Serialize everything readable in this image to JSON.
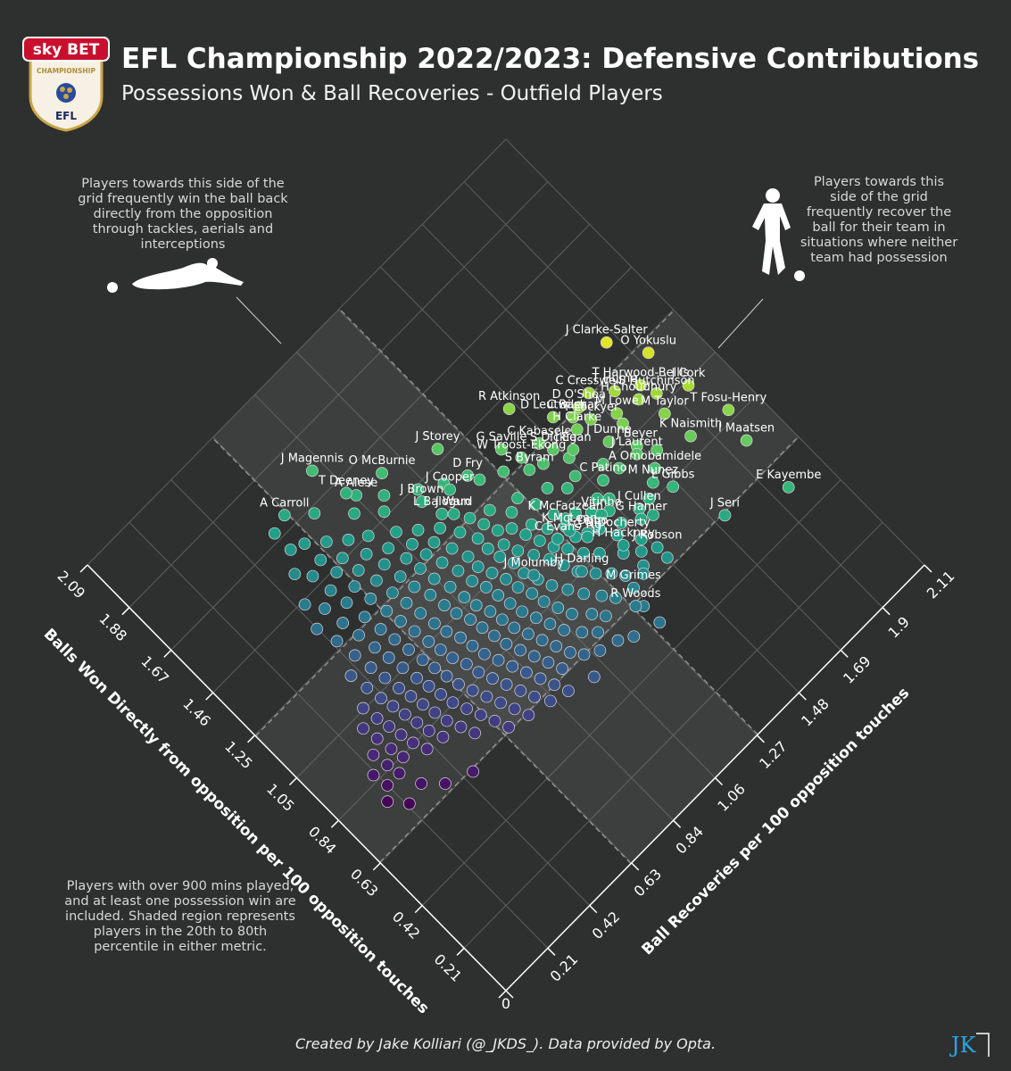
{
  "header": {
    "title": "EFL Championship 2022/2023: Defensive Contributions",
    "subtitle": "Possessions Won & Ball Recoveries - Outfield Players"
  },
  "logo": {
    "brand": "sky BET",
    "league": "CHAMPIONSHIP",
    "short": "EFL"
  },
  "notes": {
    "left": "Players towards this side of the grid frequently win the ball back directly from the opposition through tackles, aerials and interceptions",
    "right": "Players towards this side of the grid frequently recover the ball for their team in situations where neither team had possession",
    "bottom": "Players with over 900 mins played, and at least one possession win are included. Shaded region represents players in the 20th to 80th percentile in either metric."
  },
  "credit": "Created by Jake Kolliari (@_JKDS_). Data provided by Opta.",
  "watermark": "JK",
  "colors": {
    "background": "#2e2f2f",
    "grid": "#6b6b6b",
    "shade": "#3d3d3d"
  },
  "chart_data": {
    "type": "scatter",
    "xlabel": "Balls Won Directly from opposition per 100 opposition touches",
    "ylabel": "Ball Recoveries per 100 opposition touches",
    "x_ticks": [
      "0",
      "0.21",
      "0.42",
      "0.63",
      "0.84",
      "1.05",
      "1.25",
      "1.46",
      "1.67",
      "1.88",
      "2.09"
    ],
    "y_ticks": [
      "0",
      "0.21",
      "0.42",
      "0.63",
      "0.84",
      "1.06",
      "1.27",
      "1.48",
      "1.69",
      "1.9",
      "2.11"
    ],
    "xlim": [
      0,
      2.09
    ],
    "ylim": [
      0,
      2.11
    ],
    "shaded_x": [
      0.63,
      1.25
    ],
    "shaded_y": [
      0.63,
      1.27
    ],
    "labeled_points": [
      {
        "name": "J Clarke-Salter",
        "x": 1.34,
        "y": 1.86
      },
      {
        "name": "O Yokuslu",
        "x": 1.21,
        "y": 1.94
      },
      {
        "name": "J Cork",
        "x": 1.03,
        "y": 1.96
      },
      {
        "name": "T Fosu-Henry",
        "x": 0.87,
        "y": 2.0
      },
      {
        "name": "T Harwood-Bellis",
        "x": 1.15,
        "y": 1.84
      },
      {
        "name": "S Hutchinson",
        "x": 1.09,
        "y": 1.86
      },
      {
        "name": "M Taylor",
        "x": 1.02,
        "y": 1.83
      },
      {
        "name": "T Hume",
        "x": 1.2,
        "y": 1.76
      },
      {
        "name": "H Choudhury",
        "x": 1.12,
        "y": 1.8
      },
      {
        "name": "C Cresswell",
        "x": 1.26,
        "y": 1.69
      },
      {
        "name": "M Lowe",
        "x": 1.14,
        "y": 1.71
      },
      {
        "name": "K Naismith",
        "x": 0.9,
        "y": 1.84
      },
      {
        "name": "I Maatsen",
        "x": 0.75,
        "y": 1.97
      },
      {
        "name": "D O'Shea",
        "x": 1.25,
        "y": 1.63
      },
      {
        "name": "T Lockyer",
        "x": 1.19,
        "y": 1.63
      },
      {
        "name": "J Beyer",
        "x": 1.01,
        "y": 1.68
      },
      {
        "name": "J Laurent",
        "x": 0.99,
        "y": 1.66
      },
      {
        "name": "C Bashar",
        "x": 1.24,
        "y": 1.59
      },
      {
        "name": "J Dunne",
        "x": 1.09,
        "y": 1.62
      },
      {
        "name": "A Omobamidele",
        "x": 0.91,
        "y": 1.67
      },
      {
        "name": "R Atkinson",
        "x": 1.42,
        "y": 1.45
      },
      {
        "name": "D Leutwiler",
        "x": 1.29,
        "y": 1.54
      },
      {
        "name": "H Clarke",
        "x": 1.2,
        "y": 1.57
      },
      {
        "name": "J Egan",
        "x": 1.16,
        "y": 1.51
      },
      {
        "name": "M Nunez",
        "x": 0.88,
        "y": 1.63
      },
      {
        "name": "L Gibbs",
        "x": 0.82,
        "y": 1.67
      },
      {
        "name": "E Kayembe",
        "x": 0.53,
        "y": 1.96
      },
      {
        "name": "C Kabasele",
        "x": 1.26,
        "y": 1.44
      },
      {
        "name": "S Dickie",
        "x": 1.21,
        "y": 1.46
      },
      {
        "name": "C Patino",
        "x": 1.01,
        "y": 1.51
      },
      {
        "name": "J Cullen",
        "x": 0.85,
        "y": 1.53
      },
      {
        "name": "G Saville",
        "x": 1.34,
        "y": 1.33
      },
      {
        "name": "W Troost-Ekong",
        "x": 1.27,
        "y": 1.36
      },
      {
        "name": "S Byram",
        "x": 1.22,
        "y": 1.35
      },
      {
        "name": "J Storey",
        "x": 1.5,
        "y": 1.17
      },
      {
        "name": "Vitinho",
        "x": 0.93,
        "y": 1.42
      },
      {
        "name": "G Hamer",
        "x": 0.82,
        "y": 1.51
      },
      {
        "name": "J Seri",
        "x": 0.62,
        "y": 1.73
      },
      {
        "name": "D Fry",
        "x": 1.36,
        "y": 1.18
      },
      {
        "name": "K McFadzean",
        "x": 1.01,
        "y": 1.32
      },
      {
        "name": "F Dabo",
        "x": 0.92,
        "y": 1.34
      },
      {
        "name": "G Docherty",
        "x": 0.84,
        "y": 1.41
      },
      {
        "name": "J Cooper",
        "x": 1.37,
        "y": 1.1
      },
      {
        "name": "K McLean",
        "x": 0.97,
        "y": 1.3
      },
      {
        "name": "G Ng",
        "x": 0.91,
        "y": 1.33
      },
      {
        "name": "H Hackney",
        "x": 0.8,
        "y": 1.4
      },
      {
        "name": "J Robson",
        "x": 0.71,
        "y": 1.48
      },
      {
        "name": "O McBurnie",
        "x": 1.58,
        "y": 0.97
      },
      {
        "name": "J Brown",
        "x": 1.41,
        "y": 1.0
      },
      {
        "name": "L Balogun",
        "x": 1.33,
        "y": 1.02
      },
      {
        "name": "J Ward",
        "x": 1.3,
        "y": 1.05
      },
      {
        "name": "C Evans",
        "x": 0.98,
        "y": 1.25
      },
      {
        "name": "J Magennis",
        "x": 1.76,
        "y": 0.8
      },
      {
        "name": "A Alese",
        "x": 1.59,
        "y": 0.85
      },
      {
        "name": "T Deeney",
        "x": 1.62,
        "y": 0.83
      },
      {
        "name": "J Molumby",
        "x": 0.95,
        "y": 1.1
      },
      {
        "name": "H Darling",
        "x": 0.84,
        "y": 1.23
      },
      {
        "name": "M Grimes",
        "x": 0.67,
        "y": 1.32
      },
      {
        "name": "R Woods",
        "x": 0.62,
        "y": 1.28
      },
      {
        "name": "A Carroll",
        "x": 1.72,
        "y": 0.62
      }
    ],
    "other_points": [
      [
        1.09,
        1.45
      ],
      [
        1.05,
        1.55
      ],
      [
        0.98,
        1.45
      ],
      [
        0.95,
        1.48
      ],
      [
        1.13,
        1.35
      ],
      [
        1.08,
        1.4
      ],
      [
        1.05,
        1.3
      ],
      [
        1.0,
        1.36
      ],
      [
        0.96,
        1.4
      ],
      [
        0.92,
        1.45
      ],
      [
        1.18,
        1.25
      ],
      [
        1.12,
        1.28
      ],
      [
        1.08,
        1.22
      ],
      [
        1.03,
        1.25
      ],
      [
        0.99,
        1.3
      ],
      [
        0.94,
        1.3
      ],
      [
        0.9,
        1.38
      ],
      [
        0.86,
        1.45
      ],
      [
        0.8,
        1.55
      ],
      [
        1.22,
        1.15
      ],
      [
        1.16,
        1.2
      ],
      [
        1.12,
        1.16
      ],
      [
        1.07,
        1.18
      ],
      [
        1.02,
        1.2
      ],
      [
        0.97,
        1.22
      ],
      [
        0.93,
        1.25
      ],
      [
        0.88,
        1.28
      ],
      [
        0.84,
        1.32
      ],
      [
        0.78,
        1.38
      ],
      [
        0.74,
        1.43
      ],
      [
        1.25,
        1.08
      ],
      [
        1.2,
        1.1
      ],
      [
        1.15,
        1.12
      ],
      [
        1.1,
        1.1
      ],
      [
        1.05,
        1.12
      ],
      [
        1.0,
        1.15
      ],
      [
        0.95,
        1.18
      ],
      [
        0.9,
        1.2
      ],
      [
        0.85,
        1.22
      ],
      [
        0.8,
        1.26
      ],
      [
        0.76,
        1.3
      ],
      [
        0.72,
        1.33
      ],
      [
        1.3,
        0.98
      ],
      [
        1.24,
        1.02
      ],
      [
        1.18,
        1.05
      ],
      [
        1.13,
        1.05
      ],
      [
        1.08,
        1.06
      ],
      [
        1.03,
        1.08
      ],
      [
        0.98,
        1.08
      ],
      [
        0.93,
        1.1
      ],
      [
        0.88,
        1.12
      ],
      [
        0.83,
        1.15
      ],
      [
        0.78,
        1.18
      ],
      [
        0.73,
        1.22
      ],
      [
        0.69,
        1.25
      ],
      [
        1.35,
        0.92
      ],
      [
        1.28,
        0.93
      ],
      [
        1.22,
        0.96
      ],
      [
        1.16,
        0.98
      ],
      [
        1.11,
        0.98
      ],
      [
        1.06,
        1.0
      ],
      [
        1.01,
        1.02
      ],
      [
        0.96,
        1.03
      ],
      [
        0.91,
        1.05
      ],
      [
        0.86,
        1.06
      ],
      [
        0.81,
        1.08
      ],
      [
        0.76,
        1.1
      ],
      [
        0.71,
        1.15
      ],
      [
        0.67,
        1.18
      ],
      [
        1.4,
        0.86
      ],
      [
        1.33,
        0.87
      ],
      [
        1.27,
        0.88
      ],
      [
        1.21,
        0.9
      ],
      [
        1.15,
        0.92
      ],
      [
        1.09,
        0.93
      ],
      [
        1.04,
        0.95
      ],
      [
        0.99,
        0.96
      ],
      [
        0.94,
        0.97
      ],
      [
        0.89,
        0.98
      ],
      [
        0.84,
        1.0
      ],
      [
        0.79,
        1.02
      ],
      [
        0.74,
        1.04
      ],
      [
        0.69,
        1.08
      ],
      [
        0.65,
        1.12
      ],
      [
        1.46,
        0.78
      ],
      [
        1.38,
        0.8
      ],
      [
        1.31,
        0.82
      ],
      [
        1.25,
        0.83
      ],
      [
        1.19,
        0.84
      ],
      [
        1.13,
        0.86
      ],
      [
        1.07,
        0.87
      ],
      [
        1.02,
        0.88
      ],
      [
        0.97,
        0.9
      ],
      [
        0.92,
        0.91
      ],
      [
        0.87,
        0.92
      ],
      [
        0.82,
        0.94
      ],
      [
        0.77,
        0.96
      ],
      [
        0.72,
        0.98
      ],
      [
        0.67,
        1.0
      ],
      [
        0.63,
        1.03
      ],
      [
        1.5,
        0.72
      ],
      [
        1.42,
        0.73
      ],
      [
        1.35,
        0.75
      ],
      [
        1.28,
        0.76
      ],
      [
        1.22,
        0.77
      ],
      [
        1.16,
        0.79
      ],
      [
        1.1,
        0.8
      ],
      [
        1.05,
        0.81
      ],
      [
        1.0,
        0.83
      ],
      [
        0.95,
        0.84
      ],
      [
        0.9,
        0.85
      ],
      [
        0.85,
        0.86
      ],
      [
        0.8,
        0.88
      ],
      [
        0.75,
        0.9
      ],
      [
        0.7,
        0.92
      ],
      [
        0.65,
        0.94
      ],
      [
        1.55,
        0.66
      ],
      [
        1.47,
        0.66
      ],
      [
        1.4,
        0.67
      ],
      [
        1.33,
        0.69
      ],
      [
        1.26,
        0.7
      ],
      [
        1.2,
        0.71
      ],
      [
        1.14,
        0.72
      ],
      [
        1.08,
        0.73
      ],
      [
        1.03,
        0.74
      ],
      [
        0.98,
        0.76
      ],
      [
        0.93,
        0.77
      ],
      [
        0.88,
        0.78
      ],
      [
        0.83,
        0.8
      ],
      [
        0.78,
        0.82
      ],
      [
        0.73,
        0.84
      ],
      [
        0.68,
        0.86
      ],
      [
        0.63,
        0.88
      ],
      [
        1.6,
        0.6
      ],
      [
        1.52,
        0.6
      ],
      [
        1.45,
        0.61
      ],
      [
        1.37,
        0.62
      ],
      [
        1.3,
        0.63
      ],
      [
        1.23,
        0.64
      ],
      [
        1.17,
        0.65
      ],
      [
        1.11,
        0.66
      ],
      [
        1.05,
        0.67
      ],
      [
        1.0,
        0.68
      ],
      [
        0.95,
        0.69
      ],
      [
        0.9,
        0.71
      ],
      [
        0.85,
        0.72
      ],
      [
        0.8,
        0.74
      ],
      [
        0.75,
        0.76
      ],
      [
        0.7,
        0.78
      ],
      [
        0.65,
        0.8
      ],
      [
        0.6,
        0.83
      ],
      [
        1.5,
        0.54
      ],
      [
        1.42,
        0.55
      ],
      [
        1.35,
        0.56
      ],
      [
        1.27,
        0.57
      ],
      [
        1.2,
        0.58
      ],
      [
        1.14,
        0.59
      ],
      [
        1.08,
        0.6
      ],
      [
        1.02,
        0.61
      ],
      [
        0.97,
        0.62
      ],
      [
        0.92,
        0.63
      ],
      [
        0.87,
        0.64
      ],
      [
        0.82,
        0.66
      ],
      [
        0.77,
        0.68
      ],
      [
        0.72,
        0.7
      ],
      [
        0.67,
        0.72
      ],
      [
        0.62,
        0.74
      ],
      [
        1.39,
        0.49
      ],
      [
        1.31,
        0.5
      ],
      [
        1.24,
        0.51
      ],
      [
        1.17,
        0.52
      ],
      [
        1.11,
        0.53
      ],
      [
        1.05,
        0.54
      ],
      [
        0.99,
        0.55
      ],
      [
        0.94,
        0.56
      ],
      [
        0.89,
        0.57
      ],
      [
        0.84,
        0.58
      ],
      [
        0.79,
        0.6
      ],
      [
        0.74,
        0.62
      ],
      [
        0.69,
        0.64
      ],
      [
        0.64,
        0.66
      ],
      [
        1.28,
        0.44
      ],
      [
        1.2,
        0.45
      ],
      [
        1.13,
        0.46
      ],
      [
        1.07,
        0.47
      ],
      [
        1.01,
        0.48
      ],
      [
        0.96,
        0.49
      ],
      [
        0.91,
        0.5
      ],
      [
        0.86,
        0.51
      ],
      [
        0.81,
        0.52
      ],
      [
        0.76,
        0.54
      ],
      [
        0.71,
        0.56
      ],
      [
        1.16,
        0.39
      ],
      [
        1.09,
        0.4
      ],
      [
        1.03,
        0.41
      ],
      [
        0.98,
        0.42
      ],
      [
        0.93,
        0.43
      ],
      [
        0.88,
        0.44
      ],
      [
        0.83,
        0.45
      ],
      [
        0.78,
        0.47
      ],
      [
        1.05,
        0.34
      ],
      [
        0.99,
        0.35
      ],
      [
        0.94,
        0.36
      ],
      [
        0.89,
        0.37
      ],
      [
        0.84,
        0.38
      ],
      [
        0.79,
        0.4
      ],
      [
        1.0,
        0.29
      ],
      [
        0.94,
        0.3
      ],
      [
        0.88,
        0.31
      ],
      [
        0.83,
        0.32
      ],
      [
        0.91,
        0.25
      ],
      [
        0.85,
        0.26
      ],
      [
        0.8,
        0.27
      ],
      [
        0.86,
        0.2
      ],
      [
        0.8,
        0.21
      ],
      [
        0.76,
        0.17
      ],
      [
        0.7,
        0.22
      ],
      [
        0.72,
        0.3
      ],
      [
        0.66,
        0.36
      ],
      [
        0.62,
        0.46
      ],
      [
        1.45,
        0.45
      ],
      [
        1.36,
        0.42
      ],
      [
        1.55,
        0.5
      ],
      [
        1.62,
        0.55
      ],
      [
        1.7,
        0.55
      ],
      [
        0.58,
        0.9
      ],
      [
        0.55,
        1.0
      ],
      [
        0.6,
        1.08
      ],
      [
        0.58,
        1.15
      ],
      [
        0.7,
        1.4
      ],
      [
        0.66,
        1.48
      ],
      [
        1.0,
        1.58
      ],
      [
        1.1,
        1.7
      ],
      [
        0.95,
        1.72
      ],
      [
        1.15,
        1.48
      ],
      [
        1.2,
        1.4
      ],
      [
        1.28,
        1.28
      ],
      [
        1.32,
        1.2
      ],
      [
        1.4,
        1.1
      ],
      [
        1.45,
        1.02
      ],
      [
        1.52,
        0.92
      ],
      [
        1.48,
        0.88
      ],
      [
        1.55,
        0.8
      ],
      [
        1.65,
        0.7
      ],
      [
        0.55,
        1.2
      ],
      [
        0.52,
        1.3
      ],
      [
        0.6,
        1.3
      ],
      [
        0.68,
        1.38
      ],
      [
        0.77,
        1.46
      ],
      [
        0.85,
        1.58
      ]
    ]
  }
}
